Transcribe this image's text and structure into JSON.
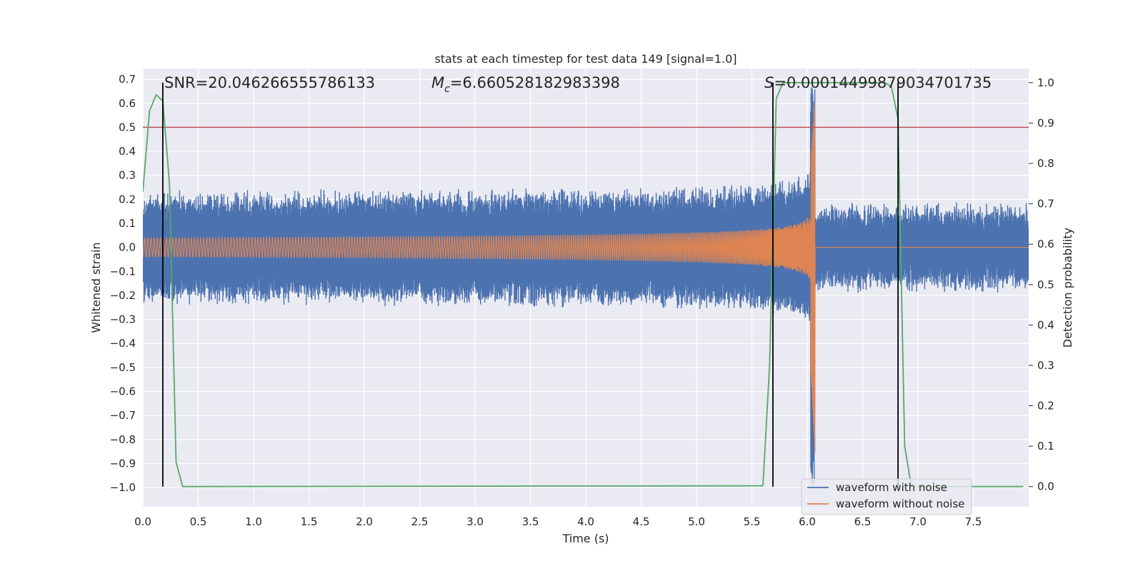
{
  "chart_data": {
    "type": "line",
    "title": "stats at each timestep for test data 149 [signal=1.0]",
    "xlabel": "Time (s)",
    "ylabel": "Whitened strain",
    "y2label": "Detection probability",
    "xlim": [
      0.0,
      8.0
    ],
    "ylim": [
      -1.08,
      0.745
    ],
    "y2lim": [
      -0.05,
      1.035
    ],
    "xticks": [
      0.0,
      0.5,
      1.0,
      1.5,
      2.0,
      2.5,
      3.0,
      3.5,
      4.0,
      4.5,
      5.0,
      5.5,
      6.0,
      6.5,
      7.0,
      7.5
    ],
    "xtick_labels": [
      "0.0",
      "0.5",
      "1.0",
      "1.5",
      "2.0",
      "2.5",
      "3.0",
      "3.5",
      "4.0",
      "4.5",
      "5.0",
      "5.5",
      "6.0",
      "6.5",
      "7.0",
      "7.5"
    ],
    "yticks": [
      0.7,
      0.6,
      0.5,
      0.4,
      0.3,
      0.2,
      0.1,
      0.0,
      -0.1,
      -0.2,
      -0.3,
      -0.4,
      -0.5,
      -0.6,
      -0.7,
      -0.8,
      -0.9,
      -1.0
    ],
    "ytick_labels": [
      "0.7",
      "0.6",
      "0.5",
      "0.4",
      "0.3",
      "0.2",
      "0.1",
      "0.0",
      "−0.1",
      "−0.2",
      "−0.3",
      "−0.4",
      "−0.5",
      "−0.6",
      "−0.7",
      "−0.8",
      "−0.9",
      "−1.0"
    ],
    "y2ticks": [
      1.0,
      0.9,
      0.8,
      0.7,
      0.6,
      0.5,
      0.4,
      0.3,
      0.2,
      0.1,
      0.0
    ],
    "y2tick_labels": [
      "1.0",
      "0.9",
      "0.8",
      "0.7",
      "0.6",
      "0.5",
      "0.4",
      "0.3",
      "0.2",
      "0.1",
      "0.0"
    ],
    "grid": true,
    "annotations": {
      "snr": "SNR=20.046266555786133",
      "mc_symbol": "M",
      "mc_sub": "c",
      "mc_value": "=6.660528182983398",
      "s_symbol": "S",
      "s_value": "=0.00014499879034701735"
    },
    "threshold_y": 0.5,
    "vertical_markers_x": [
      0.18,
      5.69,
      6.82
    ],
    "series": [
      {
        "name": "waveform with noise",
        "color": "#4c72b0",
        "kind": "noisy_chirp",
        "noise_amplitude": 0.17,
        "noise_amplitude_end": 0.16,
        "merger_time": 6.07,
        "peak_min": -1.0,
        "peak_max": 0.68
      },
      {
        "name": "waveform without noise",
        "color": "#dd8452",
        "kind": "chirp",
        "start_amplitude": 0.04,
        "merger_time": 6.07,
        "peak_max": 0.62,
        "peak_min": -0.86
      },
      {
        "name": "detection probability",
        "color": "#55a868",
        "axis": "right",
        "x": [
          0.0,
          0.06,
          0.12,
          0.18,
          0.24,
          0.3,
          0.36,
          0.42,
          5.6,
          5.66,
          5.72,
          5.78,
          6.7,
          6.76,
          6.82,
          6.88,
          6.94,
          7.95
        ],
        "y": [
          0.73,
          0.93,
          0.97,
          0.955,
          0.75,
          0.06,
          0.0,
          0.0,
          0.002,
          0.3,
          0.96,
          1.0,
          1.0,
          0.99,
          0.91,
          0.1,
          0.0,
          0.0
        ]
      }
    ],
    "threshold_color": "#c44e52",
    "marker_color": "#000000",
    "legend_position": "lower-right"
  }
}
